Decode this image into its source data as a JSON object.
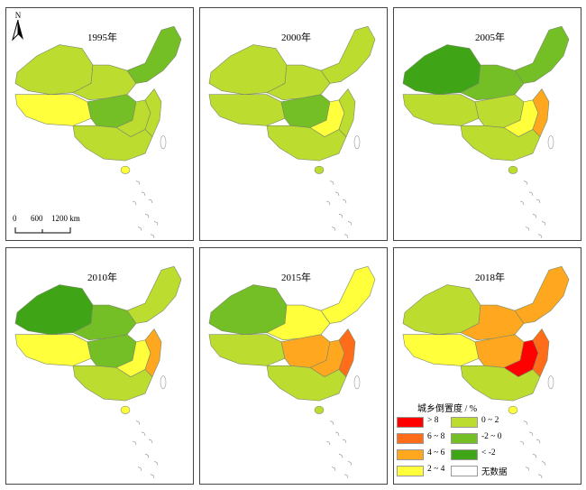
{
  "colors": {
    "gt8": "#ff0000",
    "r6_8": "#ff6d1a",
    "r4_6": "#ffa71f",
    "r2_4": "#ffff3b",
    "r0_2": "#bcdc30",
    "rm2_0": "#74be26",
    "ltm2": "#3fa517",
    "nodata": "#ffffff",
    "outline": "#7a8a66"
  },
  "panels": [
    {
      "year": "1995年",
      "palette": [
        "r0_2",
        "r2_4",
        "r0_2",
        "rm2_0",
        "rm2_0",
        "r0_2",
        "r0_2"
      ]
    },
    {
      "year": "2000年",
      "palette": [
        "r0_2",
        "r0_2",
        "r0_2",
        "r0_2",
        "rm2_0",
        "r2_4",
        "r0_2"
      ]
    },
    {
      "year": "2005年",
      "palette": [
        "ltm2",
        "r0_2",
        "rm2_0",
        "rm2_0",
        "r0_2",
        "r2_4",
        "r4_6"
      ]
    },
    {
      "year": "2010年",
      "palette": [
        "ltm2",
        "r2_4",
        "rm2_0",
        "r0_2",
        "rm2_0",
        "r2_4",
        "r4_6"
      ]
    },
    {
      "year": "2015年",
      "palette": [
        "rm2_0",
        "r0_2",
        "r2_4",
        "r2_4",
        "r4_6",
        "r4_6",
        "r6_8"
      ]
    },
    {
      "year": "2018年",
      "palette": [
        "r0_2",
        "r2_4",
        "r4_6",
        "r4_6",
        "r4_6",
        "gt8",
        "r6_8"
      ]
    }
  ],
  "north_label": "N",
  "scale": {
    "ticks": [
      "0",
      "600",
      "1200 km"
    ]
  },
  "legend": {
    "title": "城乡倒置度 / %",
    "items": [
      {
        "label": "> 8",
        "color": "gt8"
      },
      {
        "label": "0 ~ 2",
        "color": "r0_2"
      },
      {
        "label": "6 ~ 8",
        "color": "r6_8"
      },
      {
        "label": "-2 ~ 0",
        "color": "rm2_0"
      },
      {
        "label": "4 ~ 6",
        "color": "r4_6"
      },
      {
        "label": "< -2",
        "color": "ltm2"
      },
      {
        "label": "2 ~ 4",
        "color": "r2_4"
      },
      {
        "label": "无数据",
        "color": "nodata"
      }
    ]
  }
}
